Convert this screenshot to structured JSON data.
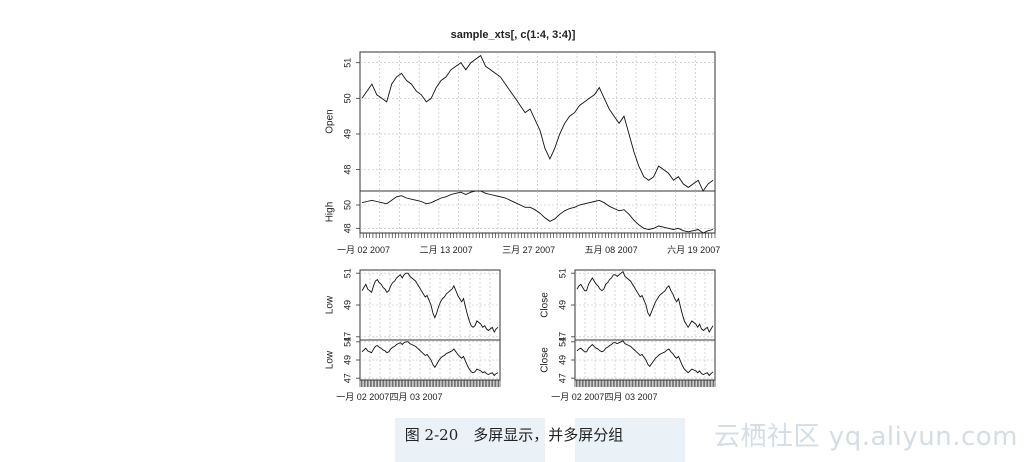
{
  "caption": "图 2-20　多屏显示，并多屏分组",
  "watermark": "云栖社区 yq.aliyun.com",
  "chart_data": [
    {
      "type": "line",
      "title": "sample_xts[, c(1:4, 3:4)]",
      "x_tick_labels": [
        "一月 02 2007",
        "二月 13 2007",
        "三月 27 2007",
        "五月 08 2007",
        "六月 19 2007"
      ],
      "series": [
        {
          "name": "Open",
          "ylim": [
            47.4,
            51.3
          ],
          "yticks": [
            48,
            49,
            50,
            51
          ],
          "values": [
            50.0,
            50.2,
            50.4,
            50.1,
            50.0,
            49.9,
            50.4,
            50.6,
            50.7,
            50.5,
            50.4,
            50.2,
            50.1,
            49.9,
            50.0,
            50.3,
            50.5,
            50.6,
            50.8,
            50.9,
            51.0,
            50.8,
            51.0,
            51.1,
            51.2,
            50.9,
            50.8,
            50.7,
            50.6,
            50.4,
            50.2,
            50.0,
            49.8,
            49.6,
            49.7,
            49.4,
            49.1,
            48.6,
            48.3,
            48.6,
            49.0,
            49.3,
            49.5,
            49.6,
            49.8,
            49.9,
            50.0,
            50.1,
            50.3,
            50.0,
            49.7,
            49.5,
            49.3,
            49.5,
            49.0,
            48.5,
            48.1,
            47.8,
            47.7,
            47.8,
            48.1,
            48.0,
            47.9,
            47.7,
            47.8,
            47.6,
            47.5,
            47.6,
            47.7,
            47.4,
            47.6,
            47.7
          ]
        },
        {
          "name": "High",
          "ylim": [
            47.6,
            51.2
          ],
          "yticks": [
            48,
            50
          ],
          "values": [
            50.2,
            50.3,
            50.4,
            50.3,
            50.2,
            50.1,
            50.4,
            50.7,
            50.8,
            50.6,
            50.5,
            50.4,
            50.3,
            50.1,
            50.2,
            50.4,
            50.6,
            50.7,
            50.9,
            51.0,
            51.1,
            50.9,
            51.1,
            51.2,
            51.2,
            51.0,
            50.9,
            50.8,
            50.7,
            50.6,
            50.4,
            50.2,
            50.0,
            49.8,
            49.8,
            49.6,
            49.3,
            48.9,
            48.6,
            48.8,
            49.2,
            49.5,
            49.7,
            49.8,
            50.0,
            50.1,
            50.2,
            50.3,
            50.4,
            50.2,
            49.9,
            49.7,
            49.5,
            49.6,
            49.2,
            48.7,
            48.3,
            48.0,
            47.9,
            48.0,
            48.2,
            48.1,
            48.0,
            47.9,
            48.0,
            47.8,
            47.7,
            47.8,
            47.9,
            47.6,
            47.8,
            47.9
          ]
        }
      ]
    },
    {
      "type": "line",
      "x_tick_labels": [
        "一月 02 2007",
        "四月 03 2007"
      ],
      "series": [
        {
          "name": "Low",
          "ylim": [
            46.8,
            51.2
          ],
          "yticks": [
            47,
            49,
            51
          ],
          "values": [
            49.9,
            50.1,
            50.3,
            50.0,
            49.9,
            49.8,
            50.2,
            50.5,
            50.6,
            50.4,
            50.3,
            50.1,
            50.0,
            49.8,
            49.9,
            50.2,
            50.4,
            50.5,
            50.7,
            50.8,
            50.9,
            50.7,
            50.9,
            51.0,
            51.0,
            50.8,
            50.7,
            50.6,
            50.5,
            50.3,
            50.1,
            49.9,
            49.7,
            49.5,
            49.6,
            49.3,
            49.0,
            48.5,
            48.2,
            48.5,
            48.9,
            49.2,
            49.4,
            49.5,
            49.7,
            49.8,
            49.9,
            50.0,
            50.2,
            49.9,
            49.6,
            49.4,
            49.2,
            49.4,
            48.9,
            48.4,
            48.0,
            47.7,
            47.6,
            47.7,
            48.0,
            47.9,
            47.8,
            47.6,
            47.7,
            47.5,
            47.4,
            47.5,
            47.6,
            47.3,
            47.5,
            47.6
          ]
        },
        {
          "name": "Low",
          "ylim": [
            46.8,
            51.2
          ],
          "yticks": [
            47,
            49,
            51
          ],
          "values": [
            49.9,
            50.1,
            50.3,
            50.0,
            49.9,
            49.8,
            50.2,
            50.5,
            50.6,
            50.4,
            50.3,
            50.1,
            50.0,
            49.8,
            49.9,
            50.2,
            50.4,
            50.5,
            50.7,
            50.8,
            50.9,
            50.7,
            50.9,
            51.0,
            51.0,
            50.8,
            50.7,
            50.6,
            50.5,
            50.3,
            50.1,
            49.9,
            49.7,
            49.5,
            49.6,
            49.3,
            49.0,
            48.5,
            48.2,
            48.5,
            48.9,
            49.2,
            49.4,
            49.5,
            49.7,
            49.8,
            49.9,
            50.0,
            50.2,
            49.9,
            49.6,
            49.4,
            49.2,
            49.4,
            48.9,
            48.4,
            48.0,
            47.7,
            47.6,
            47.7,
            48.0,
            47.9,
            47.8,
            47.6,
            47.7,
            47.5,
            47.4,
            47.5,
            47.6,
            47.3,
            47.5,
            47.6
          ]
        }
      ]
    },
    {
      "type": "line",
      "x_tick_labels": [
        "一月 02 2007",
        "四月 03 2007"
      ],
      "series": [
        {
          "name": "Close",
          "ylim": [
            46.8,
            51.2
          ],
          "yticks": [
            47,
            49,
            51
          ],
          "values": [
            50.0,
            50.2,
            50.3,
            50.1,
            49.9,
            49.9,
            50.3,
            50.5,
            50.7,
            50.5,
            50.3,
            50.2,
            50.0,
            49.9,
            50.0,
            50.3,
            50.4,
            50.6,
            50.7,
            50.9,
            50.9,
            50.8,
            50.9,
            51.0,
            51.1,
            50.8,
            50.7,
            50.6,
            50.5,
            50.3,
            50.1,
            49.9,
            49.7,
            49.5,
            49.6,
            49.3,
            49.0,
            48.5,
            48.3,
            48.6,
            48.9,
            49.2,
            49.4,
            49.6,
            49.7,
            49.8,
            49.9,
            50.1,
            50.2,
            49.9,
            49.7,
            49.4,
            49.2,
            49.4,
            48.9,
            48.4,
            48.0,
            47.8,
            47.6,
            47.8,
            48.0,
            47.9,
            47.8,
            47.6,
            47.8,
            47.5,
            47.4,
            47.5,
            47.6,
            47.3,
            47.5,
            47.7
          ]
        },
        {
          "name": "Close",
          "ylim": [
            46.8,
            51.2
          ],
          "yticks": [
            47,
            49,
            51
          ],
          "values": [
            50.0,
            50.2,
            50.3,
            50.1,
            49.9,
            49.9,
            50.3,
            50.5,
            50.7,
            50.5,
            50.3,
            50.2,
            50.0,
            49.9,
            50.0,
            50.3,
            50.4,
            50.6,
            50.7,
            50.9,
            50.9,
            50.8,
            50.9,
            51.0,
            51.1,
            50.8,
            50.7,
            50.6,
            50.5,
            50.3,
            50.1,
            49.9,
            49.7,
            49.5,
            49.6,
            49.3,
            49.0,
            48.5,
            48.3,
            48.6,
            48.9,
            49.2,
            49.4,
            49.6,
            49.7,
            49.8,
            49.9,
            50.1,
            50.2,
            49.9,
            49.7,
            49.4,
            49.2,
            49.4,
            48.9,
            48.4,
            48.0,
            47.8,
            47.6,
            47.8,
            48.0,
            47.9,
            47.8,
            47.6,
            47.8,
            47.5,
            47.4,
            47.5,
            47.6,
            47.3,
            47.5,
            47.7
          ]
        }
      ]
    }
  ]
}
